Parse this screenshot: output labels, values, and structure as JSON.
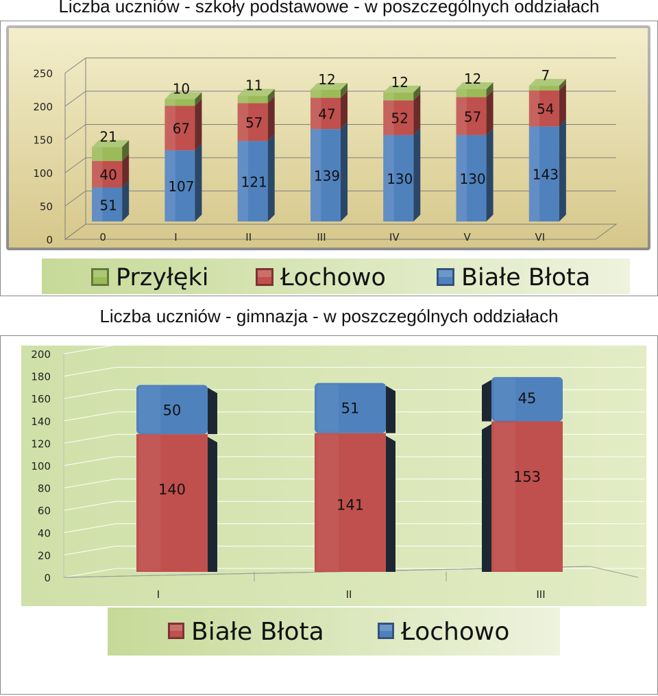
{
  "titles": {
    "primary": "Liczba uczniów - szkoły podstawowe - w poszczególnych oddziałach",
    "gimnazjum": "Liczba uczniów - gimnazja - w poszczególnych oddziałach"
  },
  "colors": {
    "blue": "#4f81bd",
    "red": "#c0504d",
    "green": "#9bbb59",
    "plot_bg_top": "#f0ebc4",
    "plot_bg_bottom": "#d8c98a",
    "legend_bg_left": "#c8dc9a",
    "legend_bg_right": "#eef3dd"
  },
  "chart_data": [
    {
      "type": "bar",
      "stacked": true,
      "title": "Liczba uczniów - szkoły podstawowe - w poszczególnych oddziałach",
      "categories": [
        "0",
        "I",
        "II",
        "III",
        "IV",
        "V",
        "VI"
      ],
      "series": [
        {
          "name": "Białe Błota",
          "color": "#4f81bd",
          "values": [
            51,
            107,
            121,
            139,
            130,
            130,
            143
          ]
        },
        {
          "name": "Łochowo",
          "color": "#c0504d",
          "values": [
            40,
            67,
            57,
            47,
            52,
            57,
            54
          ]
        },
        {
          "name": "Przyłęki",
          "color": "#9bbb59",
          "values": [
            21,
            10,
            11,
            12,
            12,
            12,
            7
          ]
        }
      ],
      "legend_order": [
        "Przyłęki",
        "Łochowo",
        "Białe Błota"
      ],
      "yticks": [
        "0",
        "50",
        "100",
        "150",
        "200",
        "250"
      ],
      "ylim": [
        0,
        250
      ],
      "grid": true,
      "legend_position": "bottom"
    },
    {
      "type": "bar",
      "stacked": true,
      "title": "Liczba uczniów - gimnazja - w poszczególnych oddziałach",
      "categories": [
        "I",
        "II",
        "III"
      ],
      "series": [
        {
          "name": "Białe Błota",
          "color": "#c0504d",
          "values": [
            140,
            141,
            153
          ]
        },
        {
          "name": "Łochowo",
          "color": "#4f81bd",
          "values": [
            50,
            51,
            45
          ]
        }
      ],
      "legend_order": [
        "Białe Błota",
        "Łochowo"
      ],
      "yticks": [
        "0",
        "20",
        "40",
        "60",
        "80",
        "100",
        "120",
        "140",
        "160",
        "180",
        "200"
      ],
      "ylim": [
        0,
        200
      ],
      "grid": true,
      "legend_position": "bottom"
    }
  ]
}
